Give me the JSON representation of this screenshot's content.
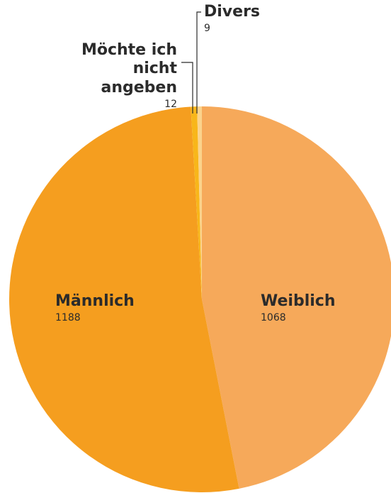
{
  "chart_data": {
    "type": "pie",
    "categories": [
      "Weiblich",
      "Männlich",
      "Möchte ich nicht angeben",
      "Divers"
    ],
    "values": [
      1068,
      1188,
      12,
      9
    ],
    "colors": [
      "#f6a95a",
      "#f59e1f",
      "#f8b61a",
      "#fbd38c"
    ]
  }
}
